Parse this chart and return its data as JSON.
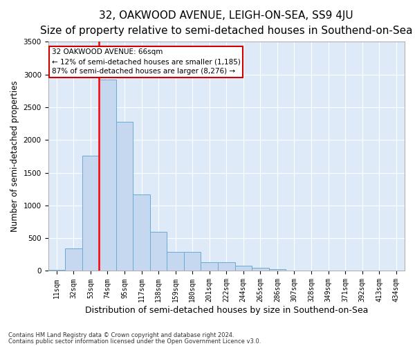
{
  "title": "32, OAKWOOD AVENUE, LEIGH-ON-SEA, SS9 4JU",
  "subtitle": "Size of property relative to semi-detached houses in Southend-on-Sea",
  "xlabel": "Distribution of semi-detached houses by size in Southend-on-Sea",
  "ylabel": "Number of semi-detached properties",
  "footnote1": "Contains HM Land Registry data © Crown copyright and database right 2024.",
  "footnote2": "Contains public sector information licensed under the Open Government Licence v3.0.",
  "bar_labels": [
    "11sqm",
    "32sqm",
    "53sqm",
    "74sqm",
    "95sqm",
    "117sqm",
    "138sqm",
    "159sqm",
    "180sqm",
    "201sqm",
    "222sqm",
    "244sqm",
    "265sqm",
    "286sqm",
    "307sqm",
    "328sqm",
    "349sqm",
    "371sqm",
    "392sqm",
    "413sqm",
    "434sqm"
  ],
  "bar_values": [
    15,
    340,
    1760,
    2920,
    2280,
    1165,
    600,
    295,
    295,
    130,
    130,
    75,
    50,
    30,
    10,
    10,
    0,
    0,
    0,
    0,
    0
  ],
  "bar_color": "#c5d8f0",
  "bar_edge_color": "#6aaad4",
  "ylim": [
    0,
    3500
  ],
  "yticks": [
    0,
    500,
    1000,
    1500,
    2000,
    2500,
    3000,
    3500
  ],
  "property_bin_index": 3,
  "annotation_line1": "32 OAKWOOD AVENUE: 66sqm",
  "annotation_line2": "← 12% of semi-detached houses are smaller (1,185)",
  "annotation_line3": "87% of semi-detached houses are larger (8,276) →",
  "title_fontsize": 11,
  "subtitle_fontsize": 9.5,
  "xlabel_fontsize": 9,
  "ylabel_fontsize": 8.5,
  "annotation_box_color": "#ffffff",
  "annotation_box_edge": "#cc0000",
  "background_color": "#deeaf8",
  "grid_color": "#ffffff",
  "tick_fontsize": 7,
  "footnote_fontsize": 6
}
